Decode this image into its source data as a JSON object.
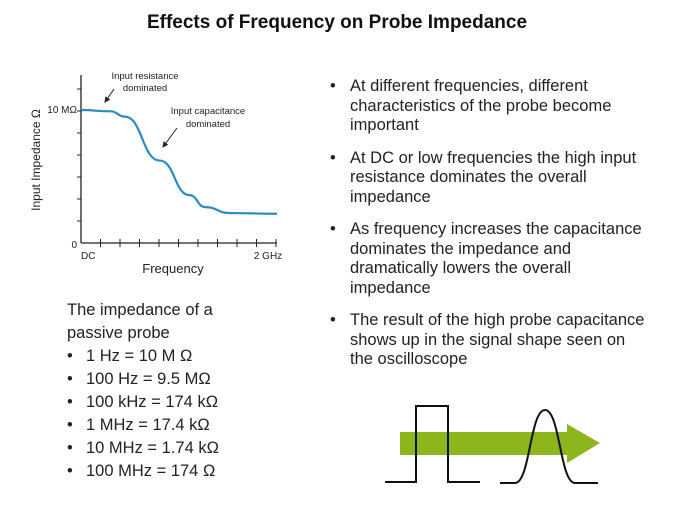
{
  "title": "Effects of Frequency on Probe Impedance",
  "chart_data": {
    "type": "line",
    "title": "",
    "xlabel": "Frequency",
    "ylabel": "Input Impedance Ω",
    "x_tick_labels": {
      "start": "DC",
      "end": "2 GHz"
    },
    "y_tick_labels": {
      "zero": "0",
      "top": "10 MΩ"
    },
    "xlim": [
      0,
      1.12
    ],
    "ylim": [
      0,
      12.6
    ],
    "x_units": "normalized (DC=0, 2 GHz=1)",
    "y_units": "MΩ",
    "series": [
      {
        "name": "impedance",
        "color": "#2a8bc2",
        "x": [
          0,
          0.17,
          0.25,
          0.45,
          0.62,
          0.71,
          0.85,
          1.12
        ],
        "y": [
          10,
          9.9,
          9.5,
          6.2,
          3.6,
          2.7,
          2.25,
          2.2
        ]
      }
    ],
    "annotations": [
      {
        "line1": "Input resistance",
        "line2": "dominated"
      },
      {
        "line1": "Input capacitance",
        "line2": "dominated"
      }
    ],
    "grid": false
  },
  "left": {
    "heading": "The impedance of a passive probe",
    "items": [
      "1 Hz = 10 M Ω",
      "100 Hz = 9.5 MΩ",
      "100 kHz = 174 kΩ",
      "1 MHz = 17.4 kΩ",
      "10 MHz = 1.74 kΩ",
      "100 MHz = 174 Ω"
    ]
  },
  "right": {
    "items": [
      "At different frequencies, different characteristics of the probe become important",
      "At DC or low frequencies the high input resistance dominates the overall impedance",
      "As frequency increases the capacitance dominates the impedance and dramatically lowers the overall impedance",
      "The result of the high probe capacitance shows up in the signal shape seen on the oscilloscope"
    ]
  },
  "colors": {
    "curve": "#2a8bc2",
    "arrow": "#8db51c"
  }
}
